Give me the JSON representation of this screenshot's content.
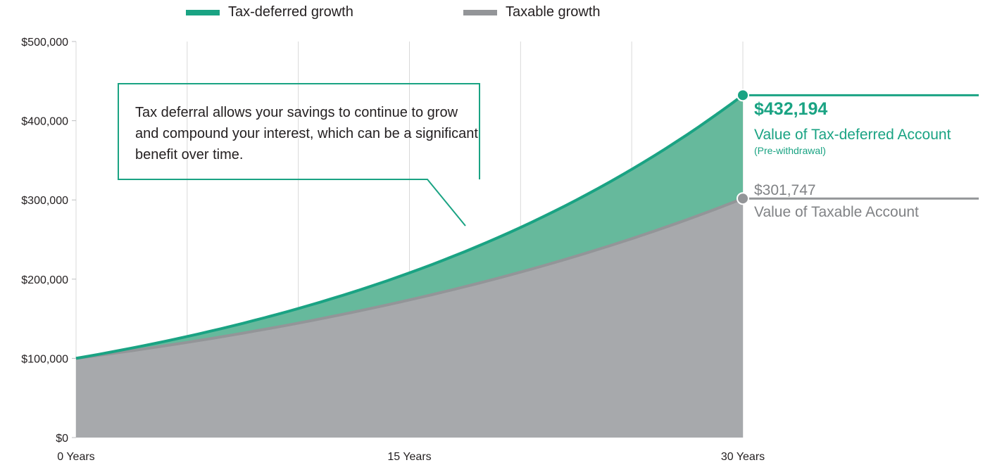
{
  "legend": {
    "items": [
      {
        "label": "Tax-deferred growth",
        "color": "#1aa383"
      },
      {
        "label": "Taxable growth",
        "color": "#939598"
      }
    ]
  },
  "callout": {
    "text": "Tax deferral allows your savings to continue to grow and compound your interest, which can be a significant benefit over time."
  },
  "annotations": {
    "tax_deferred_value": "$432,194",
    "tax_deferred_label": "Value of Tax-deferred Account",
    "tax_deferred_note": "(Pre-withdrawal)",
    "taxable_value": "$301,747",
    "taxable_label": "Value of Taxable Account"
  },
  "colors": {
    "tax_deferred": "#1aa383",
    "tax_deferred_fill": "#66b99c",
    "taxable": "#939598",
    "taxable_fill": "#a7a9ac",
    "grid": "#d9d9d9"
  },
  "chart_data": {
    "type": "area",
    "title": "",
    "xlabel": "",
    "ylabel": "",
    "x": [
      0,
      5,
      10,
      15,
      20,
      25,
      30
    ],
    "x_tick_values": [
      0,
      15,
      30
    ],
    "x_tick_labels": [
      "0 Years",
      "15 Years",
      "30 Years"
    ],
    "y_tick_values": [
      0,
      100000,
      200000,
      300000,
      400000,
      500000
    ],
    "y_tick_labels": [
      "$0",
      "$100,000",
      "$200,000",
      "$300,000",
      "$400,000",
      "$500,000"
    ],
    "xlim": [
      0,
      30
    ],
    "ylim": [
      0,
      500000
    ],
    "grid": true,
    "legend_position": "top",
    "series": [
      {
        "name": "Tax-deferred growth",
        "values": [
          100000,
          127600,
          162900,
          207900,
          265300,
          338600,
          432194
        ]
      },
      {
        "name": "Taxable growth",
        "values": [
          100000,
          120200,
          144500,
          173800,
          208900,
          251100,
          301747
        ]
      }
    ]
  }
}
